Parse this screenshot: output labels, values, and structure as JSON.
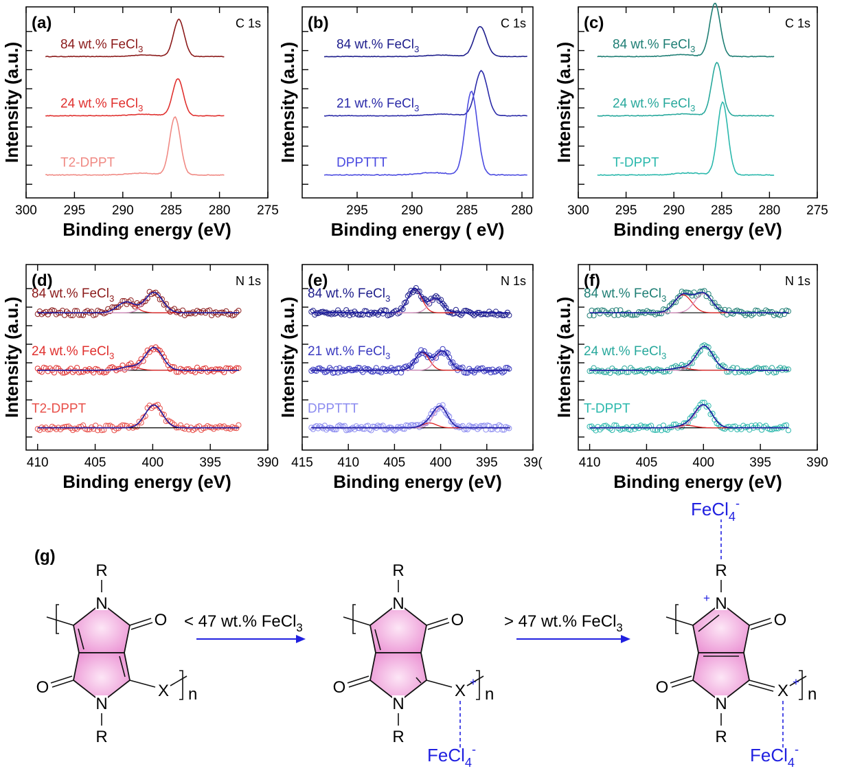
{
  "chart_data": [
    {
      "type": "line",
      "panel": "(a)",
      "core_level": "C 1s",
      "xlabel": "Binding energy (eV)",
      "ylabel": "Intensity (a.u.)",
      "xlim": [
        300,
        275
      ],
      "xticks": [
        "300",
        "295",
        "290",
        "285",
        "280",
        "275"
      ],
      "grid": false,
      "series": [
        {
          "name": "84 wt.% FeCl3",
          "label_main": "84 wt.% FeCl",
          "label_sub": "3",
          "color": "#8b1a1a",
          "peak_ev": 284.2,
          "peak_height": 1.0
        },
        {
          "name": "24 wt.% FeCl3",
          "label_main": "24 wt.% FeCl",
          "label_sub": "3",
          "color": "#e0302e",
          "peak_ev": 284.3,
          "peak_height": 1.0
        },
        {
          "name": "T2-DPPT",
          "label_main": "T2-DPPT",
          "label_sub": "",
          "color": "#f08a84",
          "peak_ev": 284.6,
          "peak_height": 1.25
        }
      ]
    },
    {
      "type": "line",
      "panel": "(b)",
      "core_level": "C 1s",
      "xlabel": "Binding energy ( eV)",
      "ylabel": "Intensity (a.u.)",
      "xlim": [
        300,
        279
      ],
      "xticks": [
        "295",
        "290",
        "285",
        "280"
      ],
      "grid": false,
      "series": [
        {
          "name": "84 wt.% FeCl3",
          "label_main": "84 wt.% FeCl",
          "label_sub": "3",
          "color": "#1e1e8c",
          "peak_ev": 283.8,
          "peak_height": 0.9
        },
        {
          "name": "21 wt.% FeCl3",
          "label_main": "21 wt.% FeCl",
          "label_sub": "3",
          "color": "#2a2aa8",
          "peak_ev": 283.7,
          "peak_height": 1.1
        },
        {
          "name": "DPPTTT",
          "label_main": "DPPTTT",
          "label_sub": "",
          "color": "#4a4ae0",
          "peak_ev": 284.6,
          "peak_height": 1.5
        }
      ]
    },
    {
      "type": "line",
      "panel": "(c)",
      "core_level": "C 1s",
      "xlabel": "Binding energy (eV)",
      "ylabel": "Intensity (a.u.)",
      "xlim": [
        300,
        275
      ],
      "xticks": [
        "300",
        "295",
        "290",
        "285",
        "280",
        "275"
      ],
      "grid": false,
      "series": [
        {
          "name": "84 wt.% FeCl3",
          "label_main": "84 wt.% FeCl",
          "label_sub": "3",
          "color": "#1e7e74",
          "peak_ev": 285.7,
          "peak_height": 1.2
        },
        {
          "name": "24 wt.% FeCl3",
          "label_main": "24 wt.% FeCl",
          "label_sub": "3",
          "color": "#27a89c",
          "peak_ev": 285.5,
          "peak_height": 1.2
        },
        {
          "name": "T-DPPT",
          "label_main": "T-DPPT",
          "label_sub": "",
          "color": "#2ab8ac",
          "peak_ev": 284.9,
          "peak_height": 1.4
        }
      ]
    },
    {
      "type": "scatter",
      "panel": "(d)",
      "core_level": "N 1s",
      "xlabel": "Binding energy (eV)",
      "ylabel": "Intensity (a.u.)",
      "xlim": [
        411,
        390
      ],
      "xticks": [
        "410",
        "405",
        "400",
        "395",
        "390"
      ],
      "grid": false,
      "fit_colors": {
        "envelope": "#1a1aa0",
        "component": "#e02020",
        "baseline": "#000000"
      },
      "series": [
        {
          "name": "84 wt.% FeCl3",
          "label_main": "84 wt.% FeCl",
          "label_sub": "3",
          "color": "#8b1a1a",
          "peaks": [
            {
              "ev": 402.3,
              "h": 0.45
            },
            {
              "ev": 399.9,
              "h": 0.85
            }
          ]
        },
        {
          "name": "24 wt.% FeCl3",
          "label_main": "24 wt.% FeCl",
          "label_sub": "3",
          "color": "#e0302e",
          "peaks": [
            {
              "ev": 402.0,
              "h": 0.15
            },
            {
              "ev": 399.9,
              "h": 0.95
            }
          ]
        },
        {
          "name": "T2-DPPT",
          "label_main": "T2-DPPT",
          "label_sub": "",
          "color": "#e8504a",
          "peaks": [
            {
              "ev": 399.9,
              "h": 0.95
            }
          ]
        }
      ]
    },
    {
      "type": "scatter",
      "panel": "(e)",
      "core_level": "N 1s",
      "xlabel": "Binding energy (eV)",
      "ylabel": "Intensity (a.u.)",
      "xlim": [
        415,
        390
      ],
      "xticks": [
        "415",
        "410",
        "405",
        "400",
        "395",
        "39("
      ],
      "grid": false,
      "fit_colors": {
        "envelope": "#1a1aa0",
        "component": "#e02020",
        "baseline": "#000000"
      },
      "series": [
        {
          "name": "84 wt.% FeCl3",
          "label_main": "84 wt.% FeCl",
          "label_sub": "3",
          "color": "#1e1e8c",
          "peaks": [
            {
              "ev": 402.8,
              "h": 1.0
            },
            {
              "ev": 400.5,
              "h": 0.6
            }
          ]
        },
        {
          "name": "21 wt.% FeCl3",
          "label_main": "21 wt.% FeCl",
          "label_sub": "3",
          "color": "#3a3ac0",
          "peaks": [
            {
              "ev": 402.0,
              "h": 0.75
            },
            {
              "ev": 399.8,
              "h": 0.8
            }
          ]
        },
        {
          "name": "DPPTTT",
          "label_main": "DPPTTT",
          "label_sub": "",
          "color": "#8c8cf0",
          "peaks": [
            {
              "ev": 401.2,
              "h": 0.2
            },
            {
              "ev": 400.0,
              "h": 0.85
            }
          ]
        }
      ]
    },
    {
      "type": "scatter",
      "panel": "(f)",
      "core_level": "N 1s",
      "xlabel": "Binding energy (eV)",
      "ylabel": "Intensity (a.u.)",
      "xlim": [
        411,
        390
      ],
      "xticks": [
        "410",
        "405",
        "400",
        "395",
        "390"
      ],
      "grid": false,
      "fit_colors": {
        "envelope": "#1a1aa0",
        "component": "#e02020",
        "baseline": "#000000"
      },
      "series": [
        {
          "name": "84 wt.% FeCl3",
          "label_main": "84 wt.% FeCl",
          "label_sub": "3",
          "color": "#1e7e74",
          "peaks": [
            {
              "ev": 401.8,
              "h": 0.75
            },
            {
              "ev": 400.0,
              "h": 0.8
            }
          ]
        },
        {
          "name": "24 wt.% FeCl3",
          "label_main": "24 wt.% FeCl",
          "label_sub": "3",
          "color": "#27a89c",
          "peaks": [
            {
              "ev": 402.0,
              "h": 0.1
            },
            {
              "ev": 399.9,
              "h": 1.0
            }
          ]
        },
        {
          "name": "T-DPPT",
          "label_main": "T-DPPT",
          "label_sub": "",
          "color": "#2ab8ac",
          "peaks": [
            {
              "ev": 401.5,
              "h": 0.1
            },
            {
              "ev": 400.0,
              "h": 0.95
            }
          ]
        }
      ]
    }
  ],
  "scheme": {
    "panel": "(g)",
    "atom_R": "R",
    "atom_N": "N",
    "atom_O": "O",
    "atom_X": "X",
    "repeat_n": "n",
    "plus": "+",
    "counter_ion_main": "FeCl",
    "counter_ion_sub": "4",
    "counter_ion_sup": "-",
    "arrow1": {
      "main": "< 47 wt.% FeCl",
      "sub": "3"
    },
    "arrow2": {
      "main": "> 47 wt.% FeCl",
      "sub": "3"
    },
    "colors": {
      "ring_fill": "#f3a8dc",
      "ring_fill_light": "#fbe0f2",
      "arrow": "#2020e0",
      "ion": "#2020e0"
    }
  }
}
